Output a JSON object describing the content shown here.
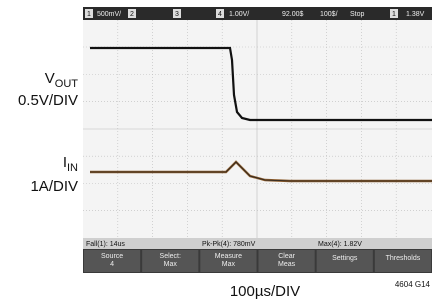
{
  "labels": {
    "vout": {
      "main": "V",
      "sub": "OUT"
    },
    "vout_scale": "0.5V/DIV",
    "iin": {
      "main": "I",
      "sub": "IN"
    },
    "iin_scale": "1A/DIV"
  },
  "top_bar": {
    "ch1": "1",
    "ch1_scale": "500mV/",
    "ch2": "2",
    "ch3": "3",
    "ch4": "4",
    "ch4_scale": "1.00V/",
    "delay": "92.00$",
    "timebase": "100$/",
    "run_state": "Stop",
    "trig_ch": "1",
    "trig_level": "1.38V"
  },
  "status": [
    "Fall(1): 14us",
    "Pk-Pk(4): 780mV",
    "Max(4): 1.82V"
  ],
  "softkeys": [
    [
      "Source",
      "4"
    ],
    [
      "Select:",
      "Max"
    ],
    [
      "Measure",
      "Max"
    ],
    [
      "Clear",
      "Meas"
    ],
    [
      "Settings"
    ],
    [
      "Thresholds"
    ]
  ],
  "footer": {
    "timebase": "100µs/DIV",
    "figure": "4604 G14"
  }
}
